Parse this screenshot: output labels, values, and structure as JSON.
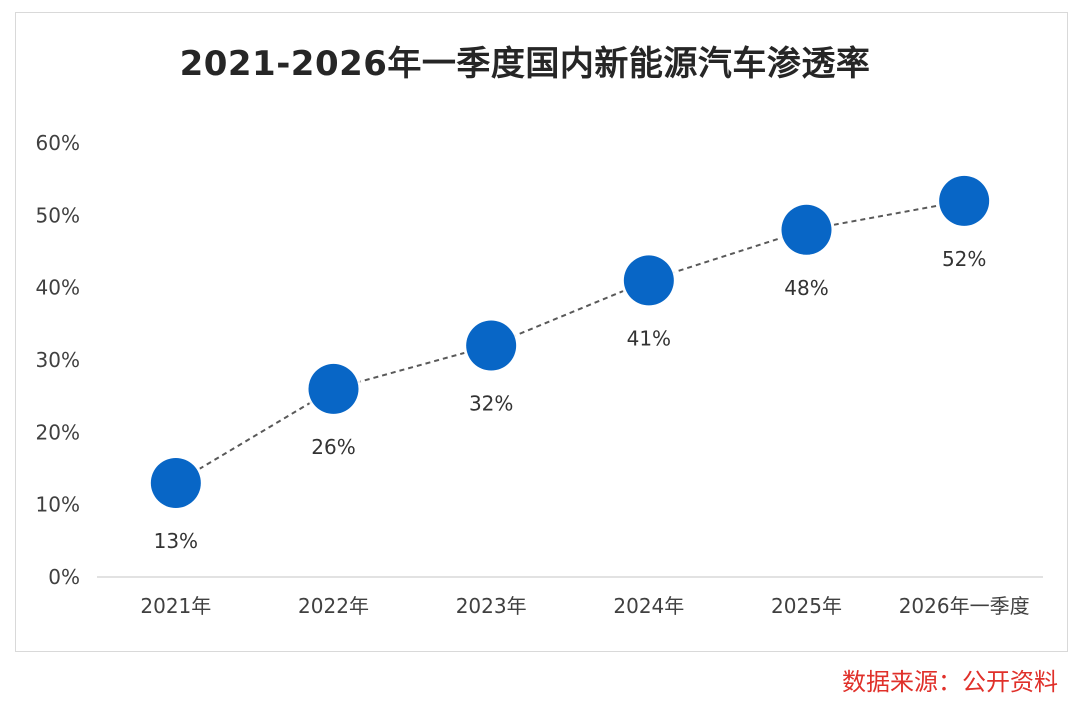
{
  "title": "2021-2026年一季度国内新能源汽车渗透率",
  "source": "数据来源：公开资料",
  "colors": {
    "marker": "#0866c6",
    "line": "#595959",
    "source_text": "#e0302a"
  },
  "chart_data": {
    "type": "line",
    "title": "2021-2026年一季度国内新能源汽车渗透率",
    "categories": [
      "2021年",
      "2022年",
      "2023年",
      "2024年",
      "2025年",
      "2026年一季度"
    ],
    "values": [
      13,
      26,
      32,
      41,
      48,
      52
    ],
    "data_labels": [
      "13%",
      "26%",
      "32%",
      "41%",
      "48%",
      "52%"
    ],
    "ylim": [
      0,
      60
    ],
    "yticks": [
      0,
      10,
      20,
      30,
      40,
      50,
      60
    ],
    "ytick_labels": [
      "0%",
      "10%",
      "20%",
      "30%",
      "40%",
      "50%",
      "60%"
    ],
    "line_style": "dashed",
    "marker": "circle",
    "grid": false,
    "legend": "none"
  }
}
